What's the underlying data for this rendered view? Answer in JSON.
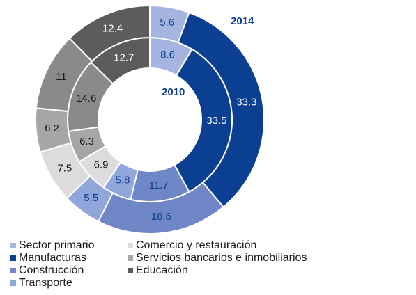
{
  "chart_data": {
    "type": "donut",
    "categories": [
      "Sector primario",
      "Manufacturas",
      "Construcción",
      "Transporte",
      "Comercio y restauración",
      "Servicios bancarios e inmobiliarios",
      null,
      "Educación"
    ],
    "colors": [
      "#a5b5e0",
      "#0b3f91",
      "#6f87c6",
      "#91a6da",
      "#dcdcdc",
      "#a6a6a6",
      "#8a8a8a",
      "#5c5c5c"
    ],
    "series": [
      {
        "name": "2010",
        "values": [
          8.6,
          33.5,
          11.7,
          5.8,
          6.9,
          6.3,
          14.6,
          12.7
        ]
      },
      {
        "name": "2014",
        "values": [
          5.6,
          33.3,
          18.6,
          5.5,
          7.5,
          6.2,
          11.0,
          12.4
        ]
      }
    ]
  }
}
